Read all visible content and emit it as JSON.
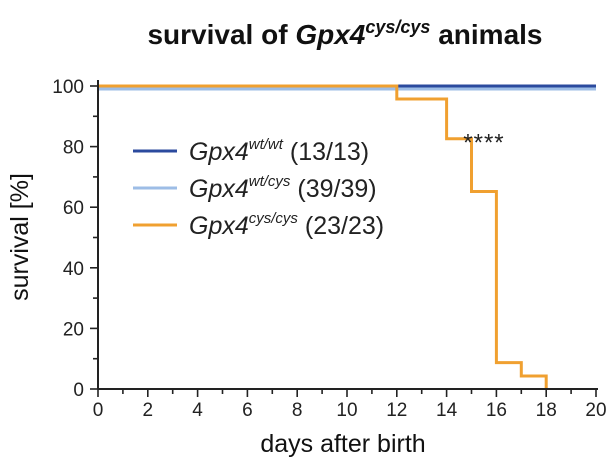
{
  "chart_data": {
    "type": "line",
    "step": true,
    "title": {
      "main": "survival of ",
      "gene": "Gpx4",
      "superscript": "cys/cys",
      "suffix": " animals"
    },
    "xlabel": "days after birth",
    "ylabel": "survival [%]",
    "xlim": [
      0,
      20
    ],
    "ylim": [
      0,
      100
    ],
    "xticks": [
      "0",
      "2",
      "4",
      "6",
      "8",
      "10",
      "12",
      "14",
      "16",
      "18",
      "20"
    ],
    "yticks": [
      "0",
      "20",
      "40",
      "60",
      "80",
      "100"
    ],
    "grid": false,
    "legend_position": "center-left",
    "series": [
      {
        "name": "Gpx4 wt/wt (13/13)",
        "label_main": "Gpx4",
        "label_sup": "wt/wt",
        "label_count": "(13/13)",
        "color": "#2b4a9e",
        "x": [
          0,
          20
        ],
        "y": [
          100,
          100
        ]
      },
      {
        "name": "Gpx4 wt/cys (39/39)",
        "label_main": "Gpx4",
        "label_sup": "wt/cys",
        "label_count": "(39/39)",
        "color": "#9dbde6",
        "x": [
          0,
          20
        ],
        "y": [
          99,
          99
        ]
      },
      {
        "name": "Gpx4 cys/cys (23/23)",
        "label_main": "Gpx4",
        "label_sup": "cys/cys",
        "label_count": "(23/23)",
        "color": "#f0a030",
        "x": [
          0,
          12,
          14,
          15,
          16,
          17,
          18
        ],
        "y": [
          100,
          95.7,
          82.6,
          65.2,
          8.7,
          4.3,
          0
        ]
      }
    ],
    "annotations": [
      {
        "text": "****",
        "x": 15.5,
        "y": 87
      }
    ]
  }
}
